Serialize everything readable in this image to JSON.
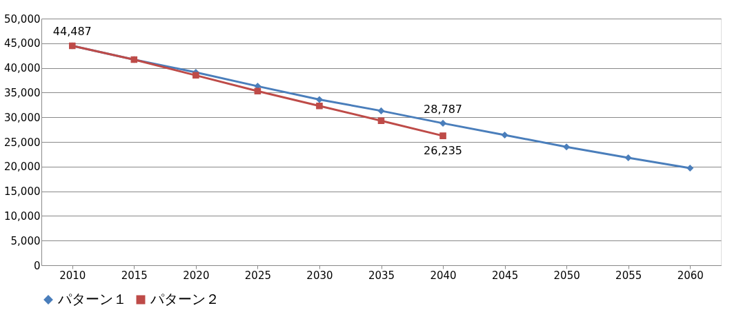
{
  "chart_data": {
    "type": "line",
    "categories": [
      "2010",
      "2015",
      "2020",
      "2025",
      "2030",
      "2035",
      "2040",
      "2045",
      "2050",
      "2055",
      "2060"
    ],
    "series": [
      {
        "name": "パターン１",
        "color": "#4a7ebb",
        "marker": "diamond",
        "values": [
          44487,
          41700,
          39100,
          36300,
          33600,
          31300,
          28787,
          26400,
          24000,
          21800,
          19700
        ],
        "value_labels": [
          "44,487",
          null,
          null,
          null,
          null,
          null,
          "28,787",
          null,
          null,
          null,
          null
        ]
      },
      {
        "name": "パターン２",
        "color": "#be4b48",
        "marker": "square",
        "values": [
          44487,
          41700,
          38500,
          35300,
          32300,
          29300,
          26235,
          null,
          null,
          null,
          null
        ],
        "value_labels": [
          null,
          null,
          null,
          null,
          null,
          null,
          "26,235",
          null,
          null,
          null,
          null
        ]
      }
    ],
    "ylim": [
      0,
      50000
    ],
    "yticks": [
      {
        "value": 0,
        "label": "0"
      },
      {
        "value": 5000,
        "label": "5,000"
      },
      {
        "value": 10000,
        "label": "10,000"
      },
      {
        "value": 15000,
        "label": "15,000"
      },
      {
        "value": 20000,
        "label": "20,000"
      },
      {
        "value": 25000,
        "label": "25,000"
      },
      {
        "value": 30000,
        "label": "30,000"
      },
      {
        "value": 35000,
        "label": "35,000"
      },
      {
        "value": 40000,
        "label": "40,000"
      },
      {
        "value": 45000,
        "label": "45,000"
      },
      {
        "value": 50000,
        "label": "50,000"
      }
    ],
    "grid": "y",
    "legend": "bottom",
    "line_style": "solid"
  }
}
